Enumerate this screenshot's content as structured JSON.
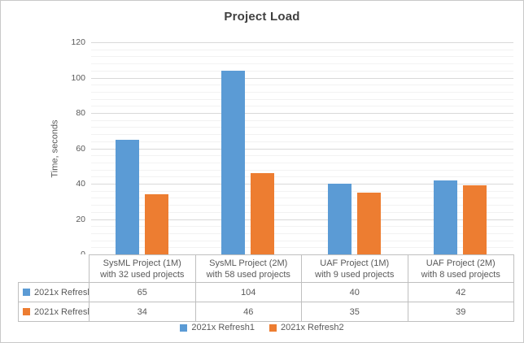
{
  "chart_data": {
    "type": "bar",
    "title": "Project Load",
    "ylabel": "Time, seconds",
    "xlabel": "",
    "ylim": [
      0,
      120
    ],
    "yticks": [
      0,
      20,
      40,
      60,
      80,
      100,
      120
    ],
    "y_major_step": 20,
    "y_minor_step": 4,
    "grid": true,
    "legend_position": "bottom",
    "show_data_table": true,
    "categories": [
      {
        "line1": "SysML Project (1M)",
        "line2": "with 32 used projects"
      },
      {
        "line1": "SysML Project (2M)",
        "line2": "with 58 used projects"
      },
      {
        "line1": "UAF Project (1M)",
        "line2": "with 9 used projects"
      },
      {
        "line1": "UAF Project (2M)",
        "line2": "with 8 used projects"
      }
    ],
    "series": [
      {
        "name": "2021x Refresh1",
        "color": "#5B9BD5",
        "values": [
          65,
          104,
          40,
          42
        ]
      },
      {
        "name": "2021x Refresh2",
        "color": "#ED7D31",
        "values": [
          34,
          46,
          35,
          39
        ]
      }
    ]
  },
  "colors": {
    "title_text": "#404040",
    "axis_text": "#595959",
    "major_gridline": "#D9D9D9",
    "minor_gridline": "#F2F2F2",
    "table_border": "#BFBFBF",
    "frame_border": "#C9C9C9"
  }
}
